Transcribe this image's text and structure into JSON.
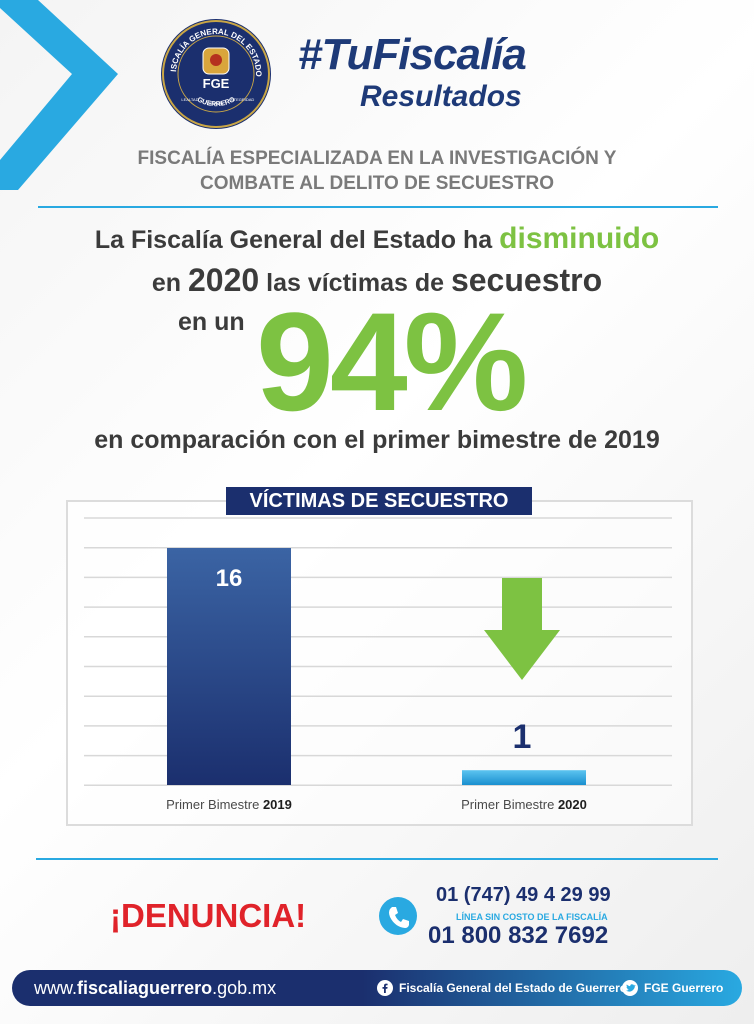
{
  "seal": {
    "ring_text": "FISCALÍA GENERAL DEL ESTADO",
    "bottom_text": "GUERRERO",
    "center_text": "FGE",
    "motto_left": "LEALTAD",
    "motto_center": "HONOR",
    "motto_right": "INTEGRIDAD"
  },
  "header": {
    "hashtag": "#TuFiscalía",
    "subtitle": "Resultados",
    "office_line1": "FISCALÍA ESPECIALIZADA EN LA INVESTIGACIÓN Y",
    "office_line2": "COMBATE AL DELITO DE SECUESTRO"
  },
  "headline": {
    "line1_a": "La Fiscalía General del Estado ha ",
    "line1_b": "disminuido",
    "line2_a": "en ",
    "line2_b": "2020",
    "line2_c": " las víctimas de ",
    "line2_d": "secuestro",
    "line3": "en un",
    "percent": "94%",
    "line4": "en comparación con el primer bimestre de 2019"
  },
  "chart_data": {
    "type": "bar",
    "title": "VÍCTIMAS DE SECUESTRO",
    "categories": [
      "Primer Bimestre 2019",
      "Primer Bimestre 2020"
    ],
    "category_prefix": "Primer Bimestre",
    "category_years": [
      "2019",
      "2020"
    ],
    "values": [
      16,
      1
    ],
    "value_labels": [
      "16",
      "1"
    ],
    "ylim": [
      0,
      16
    ],
    "grid": true,
    "colors": [
      "#234a8a",
      "#29a9e1"
    ],
    "annotation": "down-arrow-icon"
  },
  "contact": {
    "denuncia": "¡DENUNCIA!",
    "phone1": "01 (747) 49 4 29 99",
    "toll_free_note": "LÍNEA SIN COSTO DE LA FISCALÍA",
    "phone2": "01 800 832 7692"
  },
  "footer": {
    "website_a": "www.",
    "website_b": "fiscaliaguerrero",
    "website_c": ".gob.mx",
    "facebook": "Fiscalía General del Estado de Guerrero",
    "twitter": "FGE Guerrero"
  },
  "colors": {
    "navy": "#1b2f6e",
    "green": "#7dc242",
    "cyan": "#29a9e1",
    "red": "#e0232a"
  }
}
